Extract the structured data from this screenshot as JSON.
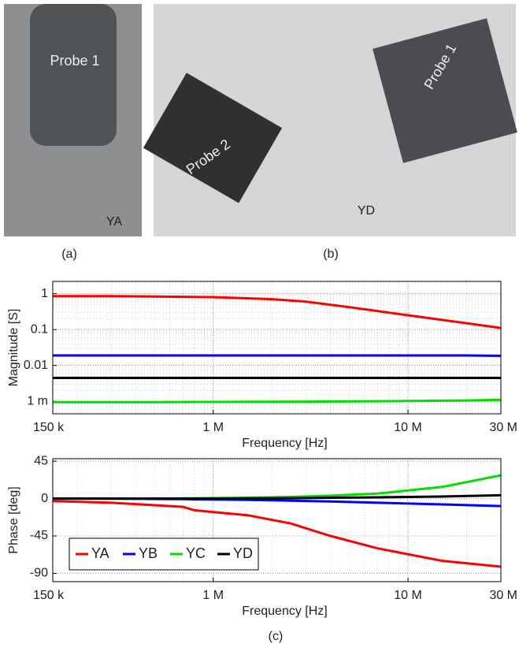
{
  "photos": [
    {
      "caption": "(a)",
      "labels": [
        "Probe 1",
        "YA"
      ]
    },
    {
      "caption": "(b)",
      "labels": [
        "Probe 2",
        "Probe 1",
        "YD"
      ]
    }
  ],
  "caption": "(c)",
  "chart_data": [
    {
      "type": "line",
      "ylabel": "Magnitude [S]",
      "xlabel": "Frequency [Hz]",
      "xscale": "log",
      "yscale": "log",
      "grid": true,
      "xlim": [
        150000,
        30000000
      ],
      "ylim": [
        0.00045,
        2.2
      ],
      "xticks": [
        {
          "value": 150000,
          "label": "150 k"
        },
        {
          "value": 1000000,
          "label": "1 M"
        },
        {
          "value": 10000000,
          "label": "10 M"
        },
        {
          "value": 30000000,
          "label": "30 M"
        }
      ],
      "yticks": [
        1,
        0.1,
        0.01,
        {
          "value": 0.001,
          "label": "1 m"
        }
      ],
      "x": [
        150000,
        300000,
        500000,
        1000000,
        2000000,
        3000000,
        5000000,
        10000000,
        20000000,
        30000000
      ],
      "series": [
        {
          "color": "#ff0000",
          "values": [
            0.85,
            0.85,
            0.83,
            0.8,
            0.7,
            0.6,
            0.42,
            0.25,
            0.15,
            0.11
          ]
        },
        {
          "color": "#0000ff",
          "values": [
            0.019,
            0.019,
            0.019,
            0.019,
            0.019,
            0.019,
            0.019,
            0.019,
            0.019,
            0.0185
          ]
        },
        {
          "color": "#00e000",
          "values": [
            0.00095,
            0.00095,
            0.00095,
            0.00096,
            0.00097,
            0.00098,
            0.001,
            0.00102,
            0.00106,
            0.0011
          ]
        },
        {
          "color": "#000000",
          "values": [
            0.0045,
            0.0045,
            0.0045,
            0.0045,
            0.0045,
            0.0045,
            0.0045,
            0.0045,
            0.0045,
            0.0045
          ]
        }
      ]
    },
    {
      "type": "line",
      "ylabel": "Phase [deg]",
      "xlabel": "Frequency [Hz]",
      "xscale": "log",
      "grid": true,
      "legend": "lower left",
      "xlim": [
        150000,
        30000000
      ],
      "ylim": [
        -100,
        48
      ],
      "xticks": [
        {
          "value": 150000,
          "label": "150 k"
        },
        {
          "value": 1000000,
          "label": "1 M"
        },
        {
          "value": 10000000,
          "label": "10 M"
        },
        {
          "value": 30000000,
          "label": "30 M"
        }
      ],
      "yticks": [
        45,
        0,
        -45,
        -90
      ],
      "x": [
        150000,
        300000,
        500000,
        700000,
        800000,
        1500000,
        2500000,
        4000000,
        7000000,
        15000000,
        30000000
      ],
      "series": [
        {
          "name": "YA",
          "color": "#ff0000",
          "values": [
            -3,
            -5,
            -8,
            -10,
            -14,
            -20,
            -30,
            -45,
            -60,
            -75,
            -82
          ]
        },
        {
          "name": "YB",
          "color": "#0000ff",
          "values": [
            0,
            0,
            -0.5,
            -0.7,
            -1,
            -1.5,
            -2.5,
            -3.5,
            -5,
            -7,
            -9
          ]
        },
        {
          "name": "YC",
          "color": "#00e000",
          "values": [
            0,
            0,
            0,
            0.3,
            0.4,
            1,
            2,
            3.5,
            6,
            14,
            28
          ]
        },
        {
          "name": "YD",
          "color": "#000000",
          "values": [
            0,
            0,
            0,
            0,
            0,
            0.3,
            0.5,
            1,
            1.5,
            2.5,
            4
          ]
        }
      ]
    }
  ]
}
